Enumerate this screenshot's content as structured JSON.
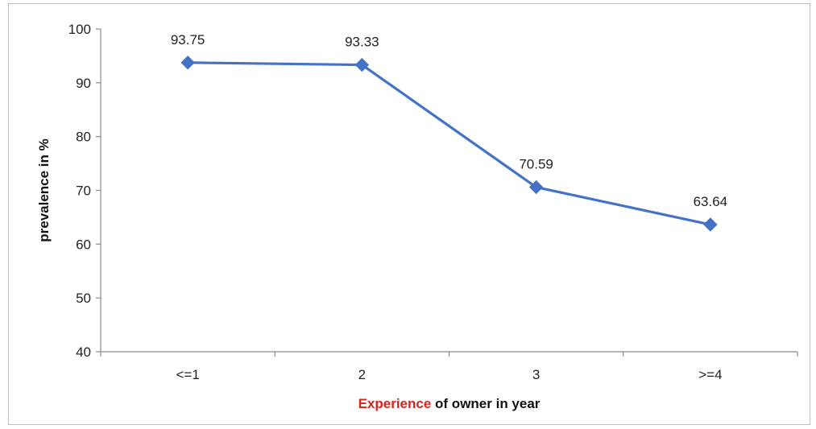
{
  "chart_data": {
    "type": "line",
    "categories": [
      "<=1",
      "2",
      "3",
      ">=4"
    ],
    "series": [
      {
        "values": [
          93.75,
          93.33,
          70.59,
          63.64
        ],
        "color": "#4472C4",
        "marker": "diamond"
      }
    ],
    "data_labels": [
      "93.75",
      "93.33",
      "70.59",
      "63.64"
    ],
    "ylabel": "prevalence in %",
    "xlabel_parts": [
      {
        "text": "Experience",
        "color": "#e0201b"
      },
      {
        "text": " of owner in year",
        "color": "#111111"
      }
    ],
    "ylim": [
      40,
      100
    ],
    "yticks": [
      40,
      50,
      60,
      70,
      80,
      90,
      100
    ],
    "ytick_labels": [
      "40",
      "50",
      "60",
      "70",
      "80",
      "90",
      "100"
    ],
    "grid": false,
    "legend": "none"
  }
}
